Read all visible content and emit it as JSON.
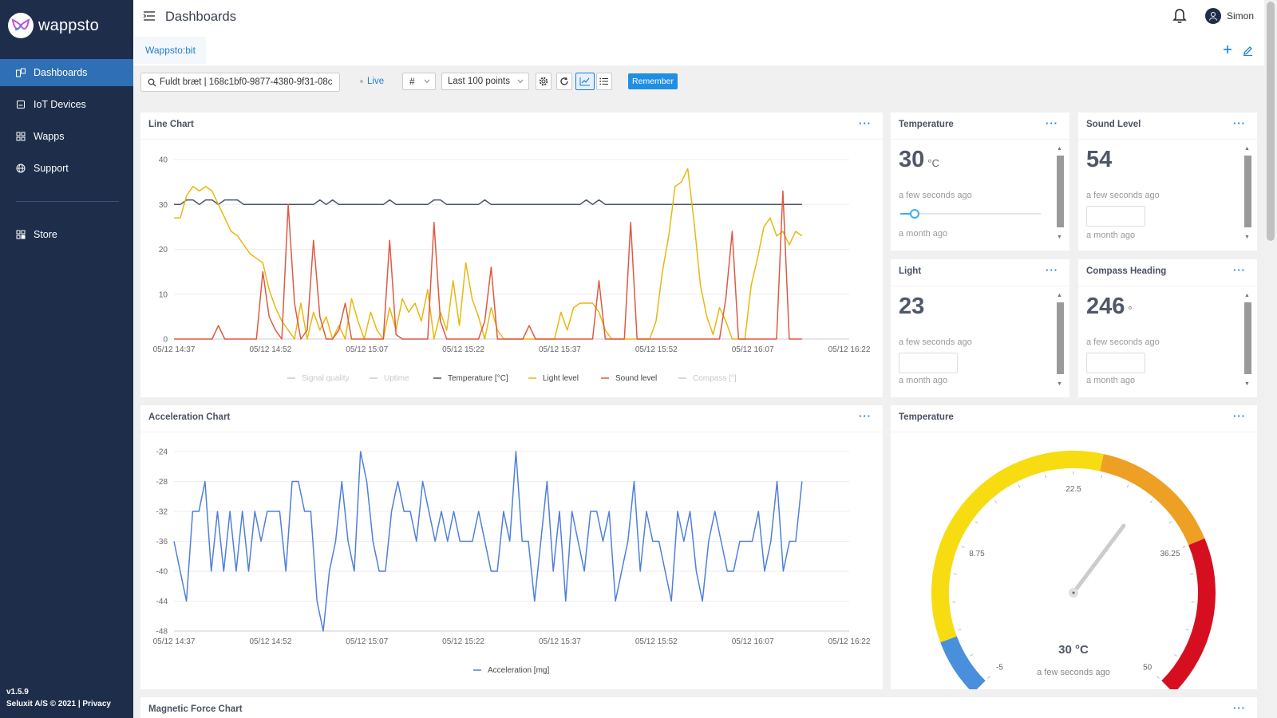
{
  "app": {
    "brand": "wappsto",
    "version": "v1.5.9",
    "footer": "Seluxit A/S © 2021 | Privacy"
  },
  "sidebar": {
    "items": [
      {
        "label": "Dashboards",
        "icon": "dashboard-icon",
        "active": true
      },
      {
        "label": "IoT Devices",
        "icon": "device-icon"
      },
      {
        "label": "Wapps",
        "icon": "grid-icon"
      },
      {
        "label": "Support",
        "icon": "globe-icon"
      },
      {
        "label": "Store",
        "icon": "store-icon"
      }
    ]
  },
  "header": {
    "title": "Dashboards",
    "user": "Simon"
  },
  "tabs": [
    {
      "label": "Wappsto:bit"
    }
  ],
  "toolbar": {
    "search_value": "Fuldt bræt | 168c1bf0-9877-4380-9f31-08c",
    "live": "Live",
    "hash": "#",
    "points": "Last 100 points",
    "remember": "Remember"
  },
  "cards": {
    "line_chart": {
      "title": "Line Chart"
    },
    "temperature": {
      "title": "Temperature",
      "value": "30",
      "unit": "°C",
      "ago": "a few seconds ago",
      "older": "a month ago",
      "slider_fraction": 0.1
    },
    "sound": {
      "title": "Sound Level",
      "value": "54",
      "ago": "a few seconds ago",
      "older": "a month ago"
    },
    "light": {
      "title": "Light",
      "value": "23",
      "ago": "a few seconds ago",
      "older": "a month ago"
    },
    "compass": {
      "title": "Compass Heading",
      "value": "246",
      "unit": "°",
      "ago": "a few seconds ago",
      "older": "a month ago"
    },
    "accel_chart": {
      "title": "Acceleration Chart"
    },
    "gauge": {
      "title": "Temperature",
      "value": 30,
      "display": "30 °C",
      "ago": "a few seconds ago",
      "min": -5,
      "max": 50,
      "ticks": [
        "-5",
        "8.75",
        "22.5",
        "36.25",
        "50"
      ]
    },
    "magnetic": {
      "title": "Magnetic Force Chart"
    }
  },
  "chart_data": [
    {
      "type": "line",
      "x_labels": [
        "05/12 14:37",
        "05/12 14:52",
        "05/12 15:07",
        "05/12 15:22",
        "05/12 15:37",
        "05/12 15:52",
        "05/12 16:07",
        "05/12 16:22"
      ],
      "ylim": [
        0,
        40
      ],
      "y_ticks": [
        0,
        10,
        20,
        30,
        40
      ],
      "legend": [
        "Signal quality",
        "Uptime",
        "Temperature [°C]",
        "Light level",
        "Sound level",
        "Compass [°]"
      ],
      "legend_colors": [
        "#cccccc",
        "#cccccc",
        "#4a5568",
        "#e8b80f",
        "#dd5a43",
        "#cccccc"
      ],
      "legend_muted": [
        true,
        true,
        false,
        false,
        false,
        true
      ],
      "series": [
        {
          "name": "Temperature [°C]",
          "color": "#4a5568",
          "values": [
            30,
            30,
            31,
            31,
            30,
            31,
            31,
            30,
            31,
            31,
            31,
            30,
            30,
            30,
            30,
            30,
            30,
            30,
            30,
            30,
            30,
            30,
            30,
            31,
            30,
            31,
            30,
            30,
            30,
            30,
            30,
            30,
            30,
            30,
            31,
            30,
            30,
            30,
            30,
            30,
            30,
            31,
            31,
            30,
            30,
            30,
            30,
            30,
            30,
            31,
            30,
            30,
            30,
            30,
            30,
            30,
            30,
            30,
            30,
            30,
            30,
            30,
            30,
            30,
            30,
            31,
            30,
            31,
            30,
            30,
            30,
            30,
            30,
            30,
            30,
            30,
            30,
            30,
            30,
            30,
            30,
            30,
            30,
            30,
            30,
            30,
            30,
            30,
            30,
            30,
            30,
            30,
            30,
            30,
            30,
            30,
            30,
            30,
            30,
            30
          ]
        },
        {
          "name": "Light level",
          "color": "#e8b80f",
          "values": [
            27,
            27,
            32,
            34,
            33,
            34,
            33,
            30,
            27,
            24,
            23,
            21,
            19,
            18,
            17,
            11,
            7,
            4,
            2,
            0,
            8,
            0,
            6,
            2,
            5,
            0,
            3,
            0,
            9,
            4,
            0,
            6,
            2,
            0,
            7,
            2,
            9,
            6,
            8,
            4,
            11,
            0,
            6,
            2,
            13,
            3,
            17,
            9,
            5,
            0,
            7,
            2,
            0,
            0,
            0,
            0,
            0,
            0,
            0,
            0,
            0,
            6,
            2,
            7,
            8,
            8,
            8,
            6,
            2,
            0,
            0,
            0,
            0,
            0,
            0,
            0,
            4,
            15,
            23,
            34,
            35,
            38,
            26,
            12,
            5,
            1,
            7,
            4,
            0,
            0,
            0,
            12,
            18,
            25,
            27,
            23,
            24,
            21,
            24,
            23
          ]
        },
        {
          "name": "Sound level",
          "color": "#dd5a43",
          "values": [
            0,
            0,
            0,
            0,
            0,
            0,
            0,
            3,
            0,
            0,
            0,
            0,
            0,
            0,
            15,
            5,
            2,
            0,
            30,
            8,
            0,
            2,
            22,
            5,
            0,
            0,
            2,
            8,
            0,
            0,
            0,
            0,
            0,
            0,
            22,
            1,
            0,
            0,
            0,
            0,
            0,
            26,
            4,
            0,
            0,
            0,
            0,
            0,
            0,
            4,
            16,
            0,
            0,
            0,
            0,
            0,
            3,
            0,
            0,
            0,
            0,
            0,
            0,
            0,
            0,
            0,
            0,
            13,
            0,
            0,
            0,
            0,
            26,
            0,
            0,
            0,
            0,
            0,
            0,
            0,
            0,
            0,
            0,
            0,
            0,
            0,
            0,
            9,
            24,
            0,
            0,
            0,
            0,
            0,
            0,
            0,
            33,
            0,
            0,
            0
          ]
        }
      ]
    },
    {
      "type": "line",
      "x_labels": [
        "05/12 14:37",
        "05/12 14:52",
        "05/12 15:07",
        "05/12 15:22",
        "05/12 15:37",
        "05/12 15:52",
        "05/12 16:07",
        "05/12 16:22"
      ],
      "ylim": [
        -48,
        -24
      ],
      "y_ticks": [
        -24,
        -28,
        -32,
        -36,
        -40,
        -44,
        -48
      ],
      "legend": [
        "Acceleration [mg]"
      ],
      "legend_colors": [
        "#4f7fdc"
      ],
      "series": [
        {
          "name": "Acceleration [mg]",
          "color": "#4f7fdc",
          "values": [
            -36,
            -40,
            -44,
            -32,
            -32,
            -28,
            -40,
            -32,
            -40,
            -32,
            -40,
            -32,
            -40,
            -32,
            -36,
            -32,
            -32,
            -32,
            -40,
            -28,
            -28,
            -32,
            -32,
            -44,
            -48,
            -40,
            -36,
            -28,
            -36,
            -40,
            -24,
            -28,
            -36,
            -40,
            -40,
            -32,
            -28,
            -32,
            -32,
            -36,
            -28,
            -32,
            -36,
            -32,
            -36,
            -32,
            -36,
            -36,
            -36,
            -32,
            -36,
            -40,
            -40,
            -32,
            -36,
            -24,
            -36,
            -36,
            -44,
            -36,
            -28,
            -40,
            -32,
            -44,
            -32,
            -36,
            -40,
            -32,
            -32,
            -36,
            -32,
            -44,
            -40,
            -36,
            -28,
            -40,
            -32,
            -36,
            -36,
            -40,
            -44,
            -32,
            -36,
            -32,
            -40,
            -44,
            -36,
            -32,
            -36,
            -40,
            -40,
            -36,
            -36,
            -36,
            -32,
            -40,
            -36,
            -28,
            -40,
            -36,
            -36,
            -28
          ]
        }
      ]
    }
  ]
}
